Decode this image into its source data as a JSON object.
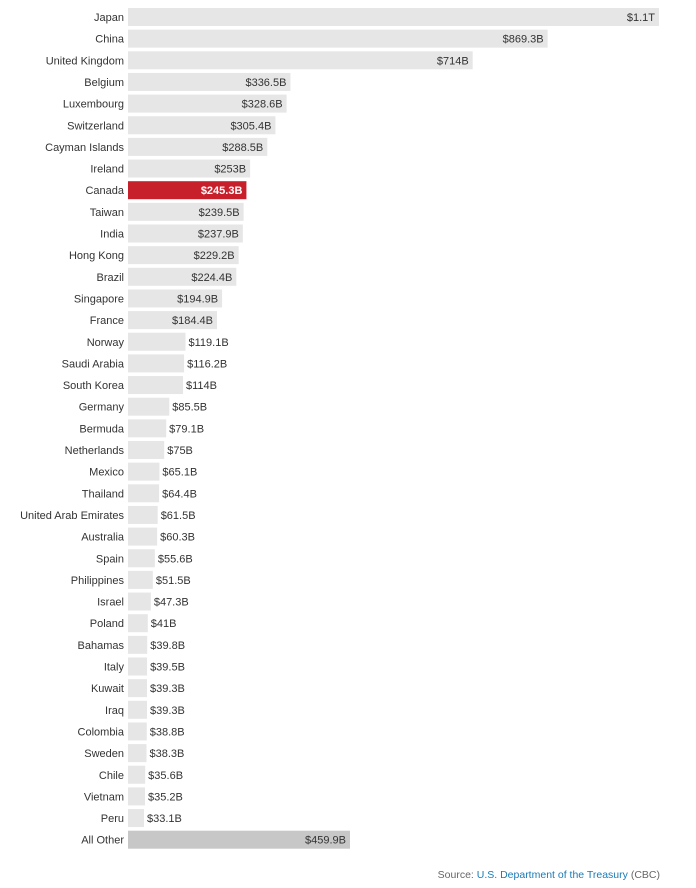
{
  "chart_data": {
    "type": "bar",
    "orientation": "horizontal",
    "categories": [
      "Japan",
      "China",
      "United Kingdom",
      "Belgium",
      "Luxembourg",
      "Switzerland",
      "Cayman Islands",
      "Ireland",
      "Canada",
      "Taiwan",
      "India",
      "Hong Kong",
      "Brazil",
      "Singapore",
      "France",
      "Norway",
      "Saudi Arabia",
      "South Korea",
      "Germany",
      "Bermuda",
      "Netherlands",
      "Mexico",
      "Thailand",
      "United Arab Emirates",
      "Australia",
      "Spain",
      "Philippines",
      "Israel",
      "Poland",
      "Bahamas",
      "Italy",
      "Kuwait",
      "Iraq",
      "Colombia",
      "Sweden",
      "Chile",
      "Vietnam",
      "Peru",
      "All Other"
    ],
    "values": [
      1100,
      869.3,
      714,
      336.5,
      328.6,
      305.4,
      288.5,
      253,
      245.3,
      239.5,
      237.9,
      229.2,
      224.4,
      194.9,
      184.4,
      119.1,
      116.2,
      114,
      85.5,
      79.1,
      75,
      65.1,
      64.4,
      61.5,
      60.3,
      55.6,
      51.5,
      47.3,
      41,
      39.8,
      39.5,
      39.3,
      39.3,
      38.8,
      38.3,
      35.6,
      35.2,
      33.1,
      459.9
    ],
    "value_labels": [
      "$1.1T",
      "$869.3B",
      "$714B",
      "$336.5B",
      "$328.6B",
      "$305.4B",
      "$288.5B",
      "$253B",
      "$245.3B",
      "$239.5B",
      "$237.9B",
      "$229.2B",
      "$224.4B",
      "$194.9B",
      "$184.4B",
      "$119.1B",
      "$116.2B",
      "$114B",
      "$85.5B",
      "$79.1B",
      "$75B",
      "$65.1B",
      "$64.4B",
      "$61.5B",
      "$60.3B",
      "$55.6B",
      "$51.5B",
      "$47.3B",
      "$41B",
      "$39.8B",
      "$39.5B",
      "$39.3B",
      "$39.3B",
      "$38.8B",
      "$38.3B",
      "$35.6B",
      "$35.2B",
      "$33.1B",
      "$459.9B"
    ],
    "value_unit": "billions USD",
    "highlight": "Canada",
    "highlight_color": "#c8202b",
    "bar_color": "#e6e6e6",
    "other_color": "#c7c7c7",
    "grid": false,
    "legend": "none"
  },
  "source": {
    "prefix": "Source:",
    "link_text": "U.S. Department of the Treasury",
    "suffix": "(CBC)"
  }
}
